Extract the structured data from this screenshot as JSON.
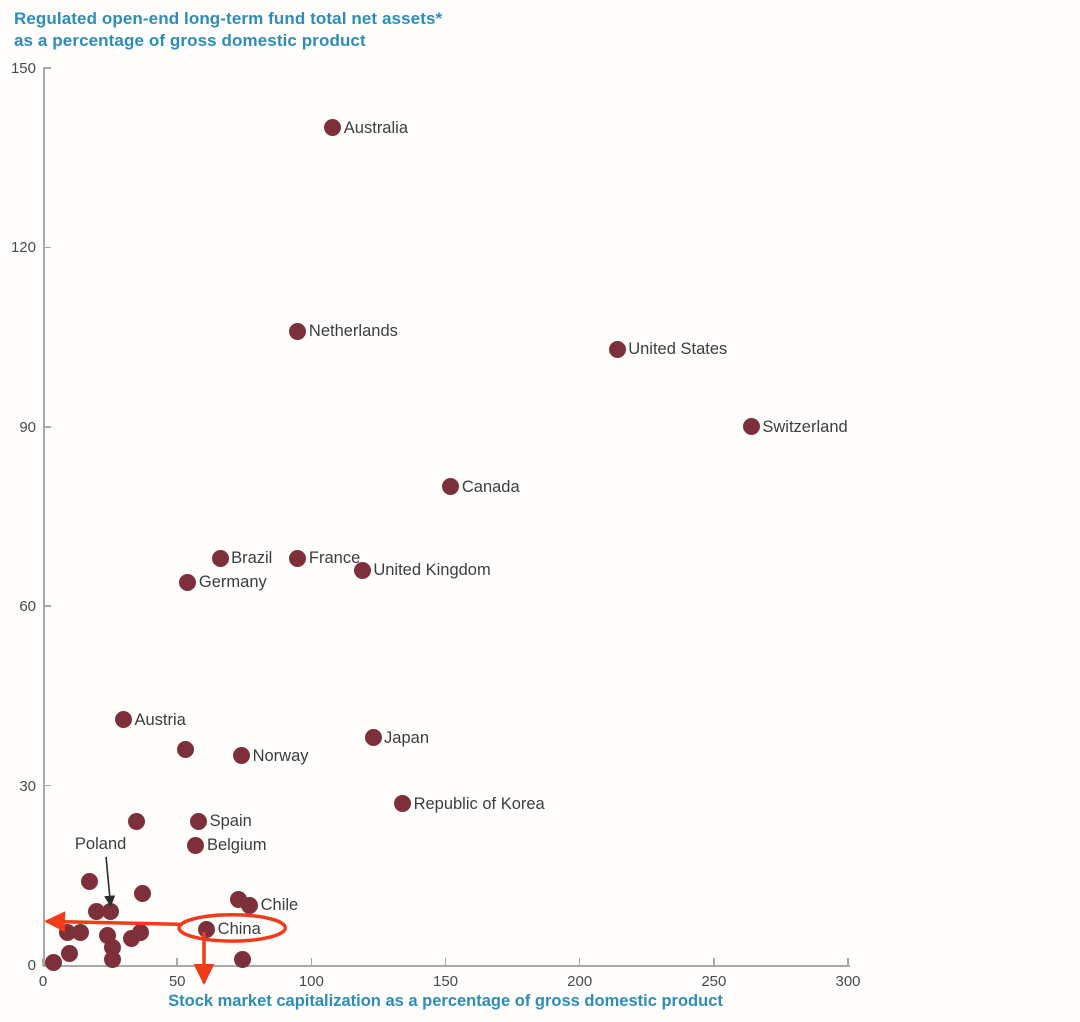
{
  "title": {
    "line1": "Regulated open-end long-term fund total net assets*",
    "line2": "as a percentage of gross domestic product"
  },
  "colors": {
    "accent_teal": "#2b8db8",
    "dot_maroon": "#7d2f3a",
    "annotation_red": "#f23b1a",
    "label_gray": "#3d3d3d",
    "tick_gray": "#4a4a4a",
    "axis_gray": "#a8a8a8",
    "black_arrow": "#2b2b2b"
  },
  "chart_data": {
    "type": "scatter",
    "title": "Regulated open-end long-term fund total net assets* as a percentage of gross domestic product",
    "xlabel": "Stock market capitalization as a percentage of gross domestic product",
    "ylabel": "Regulated open-end long-term fund total net assets* as a percentage of gross domestic product",
    "xlim": [
      0,
      300
    ],
    "ylim": [
      0,
      150
    ],
    "x_ticks": [
      0,
      50,
      100,
      150,
      200,
      250,
      300
    ],
    "y_ticks": [
      0,
      30,
      60,
      90,
      120,
      150
    ],
    "grid": false,
    "legend": "none",
    "points": [
      {
        "country": "Australia",
        "x": 108,
        "y": 140
      },
      {
        "country": "Netherlands",
        "x": 95,
        "y": 106
      },
      {
        "country": "United States",
        "x": 214,
        "y": 103
      },
      {
        "country": "Switzerland",
        "x": 264,
        "y": 90
      },
      {
        "country": "Canada",
        "x": 152,
        "y": 80
      },
      {
        "country": "Brazil",
        "x": 66,
        "y": 68
      },
      {
        "country": "France",
        "x": 95,
        "y": 68
      },
      {
        "country": "United Kingdom",
        "x": 119,
        "y": 66
      },
      {
        "country": "Germany",
        "x": 54,
        "y": 64
      },
      {
        "country": "Austria",
        "x": 30,
        "y": 41
      },
      {
        "country": "Japan",
        "x": 123,
        "y": 38
      },
      {
        "country": "Norway",
        "x": 74,
        "y": 35
      },
      {
        "country": "Republic of Korea",
        "x": 134,
        "y": 27
      },
      {
        "country": "Spain",
        "x": 58,
        "y": 24
      },
      {
        "country": "Belgium",
        "x": 57,
        "y": 20
      },
      {
        "country": "Chile",
        "x": 77,
        "y": 10
      },
      {
        "country": "China",
        "x": 61,
        "y": 6
      },
      {
        "country": "Poland",
        "x": 25,
        "y": 9,
        "label_via_arrow": true
      },
      {
        "country": "",
        "x": 53,
        "y": 36
      },
      {
        "country": "",
        "x": 35,
        "y": 24
      },
      {
        "country": "",
        "x": 17.5,
        "y": 14
      },
      {
        "country": "",
        "x": 37,
        "y": 12
      },
      {
        "country": "",
        "x": 73,
        "y": 11
      },
      {
        "country": "",
        "x": 20,
        "y": 9
      },
      {
        "country": "",
        "x": 9,
        "y": 5.5
      },
      {
        "country": "",
        "x": 14,
        "y": 5.5
      },
      {
        "country": "",
        "x": 24,
        "y": 5
      },
      {
        "country": "",
        "x": 33,
        "y": 4.5
      },
      {
        "country": "",
        "x": 36.5,
        "y": 5.5
      },
      {
        "country": "",
        "x": 26,
        "y": 3
      },
      {
        "country": "",
        "x": 10,
        "y": 2
      },
      {
        "country": "",
        "x": 26,
        "y": 1
      },
      {
        "country": "",
        "x": 74.5,
        "y": 1
      },
      {
        "country": "",
        "x": 4,
        "y": 0.5
      }
    ],
    "annotations": {
      "poland_callout": {
        "text": "Poland",
        "text_x": 11.9,
        "text_y": 21.9,
        "arrow_from": [
          23.5,
          18.1
        ],
        "arrow_to": [
          25.2,
          9.9
        ]
      },
      "china_ellipse": {
        "cx": 70.5,
        "cy": 6.2,
        "rx": 19.8,
        "ry": 2.2
      },
      "left_arrow": {
        "from": [
          52,
          6.8
        ],
        "to": [
          1.2,
          7.3
        ]
      },
      "down_arrow": {
        "from": [
          60,
          5.5
        ],
        "to": [
          60,
          -3
        ]
      }
    }
  }
}
